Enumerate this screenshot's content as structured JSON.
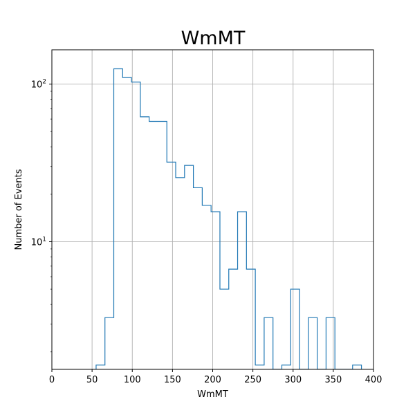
{
  "chart_data": {
    "type": "histogram-step",
    "title": "WmMT",
    "xlabel": "WmMT",
    "ylabel": "Number of Events",
    "xlim": [
      0,
      400
    ],
    "ylim": [
      1.55,
      165
    ],
    "yscale": "log",
    "grid": true,
    "x_ticks": [
      {
        "value": 0,
        "label": "0"
      },
      {
        "value": 50,
        "label": "50"
      },
      {
        "value": 100,
        "label": "100"
      },
      {
        "value": 150,
        "label": "150"
      },
      {
        "value": 200,
        "label": "200"
      },
      {
        "value": 250,
        "label": "250"
      },
      {
        "value": 300,
        "label": "300"
      },
      {
        "value": 350,
        "label": "350"
      },
      {
        "value": 400,
        "label": "400"
      }
    ],
    "y_ticks": [
      {
        "value": 10,
        "base": "10",
        "exp": "1"
      },
      {
        "value": 100,
        "base": "10",
        "exp": "2"
      }
    ],
    "bin_edges": [
      55,
      66,
      77,
      88,
      99,
      110,
      121,
      132,
      143,
      154,
      165,
      176,
      187,
      198,
      209,
      220,
      231,
      242,
      253,
      264,
      275,
      286,
      297,
      308,
      319,
      330,
      341,
      352,
      363,
      374,
      385
    ],
    "counts": [
      1.65,
      3.3,
      125,
      110,
      103,
      62,
      58,
      58,
      32,
      25.5,
      30.5,
      22,
      17,
      15.5,
      5,
      6.7,
      15.5,
      6.7,
      1.65,
      3.3,
      0,
      1.65,
      5,
      0,
      3.3,
      0,
      3.3,
      0,
      0,
      1.65
    ],
    "series_color": "#1f77b4"
  }
}
